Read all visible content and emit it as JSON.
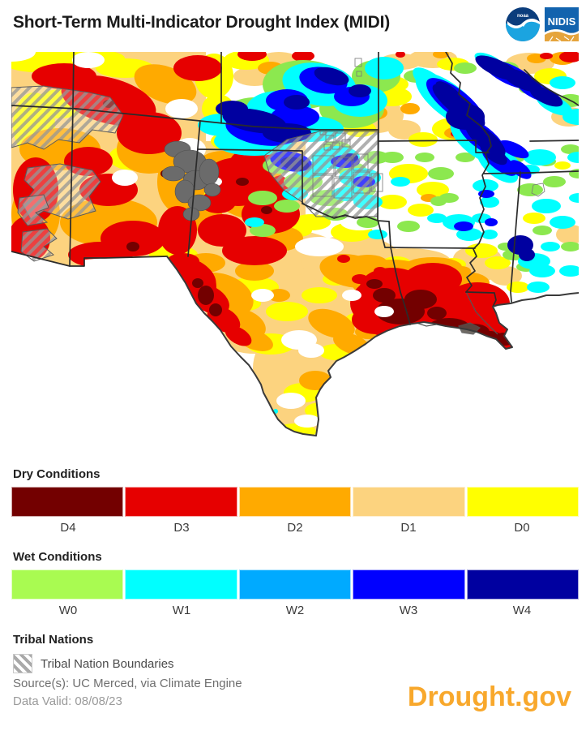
{
  "header": {
    "title": "Short-Term Multi-Indicator Drought Index (MIDI)",
    "noaa_logo_text": "noaa",
    "nidis_logo_text": "NIDIS"
  },
  "legends": {
    "dry": {
      "heading": "Dry Conditions",
      "classes": [
        {
          "label": "D4",
          "color": "#730000"
        },
        {
          "label": "D3",
          "color": "#E60000"
        },
        {
          "label": "D2",
          "color": "#FFAA00"
        },
        {
          "label": "D1",
          "color": "#FCD37F"
        },
        {
          "label": "D0",
          "color": "#FFFF00"
        }
      ]
    },
    "wet": {
      "heading": "Wet Conditions",
      "classes": [
        {
          "label": "W0",
          "color": "#A9FB51"
        },
        {
          "label": "W1",
          "color": "#00FFFF"
        },
        {
          "label": "W2",
          "color": "#00AAFF"
        },
        {
          "label": "W3",
          "color": "#0000FF"
        },
        {
          "label": "W4",
          "color": "#0000A0"
        }
      ]
    },
    "tribal": {
      "heading": "Tribal Nations",
      "item_label": "Tribal Nation Boundaries"
    }
  },
  "footer": {
    "source": "Source(s): UC Merced, via Climate Engine",
    "data_valid": "Data Valid: 08/08/23",
    "brand": "Drought.gov",
    "brand_color": "#F8A82C"
  }
}
